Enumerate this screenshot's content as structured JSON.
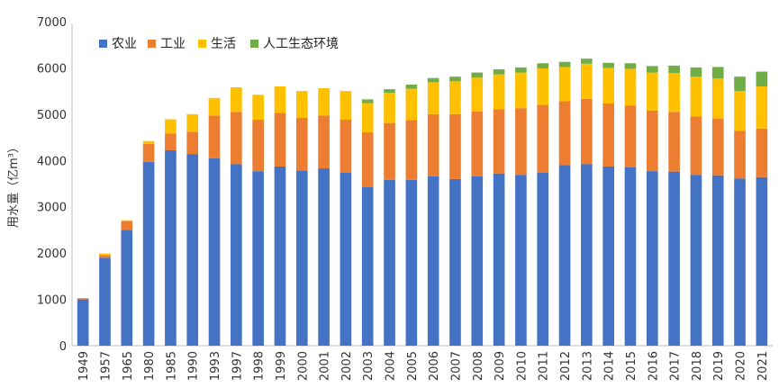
{
  "chart_data": {
    "type": "bar",
    "stacked": true,
    "ylabel": "用水量（亿m³）",
    "ylim": [
      0,
      7000
    ],
    "yticks": [
      0,
      1000,
      2000,
      3000,
      4000,
      5000,
      6000,
      7000
    ],
    "grid": false,
    "legend_position": "top-left",
    "categories": [
      "1949",
      "1957",
      "1965",
      "1980",
      "1985",
      "1990",
      "1993",
      "1997",
      "1998",
      "1999",
      "2000",
      "2001",
      "2002",
      "2003",
      "2004",
      "2005",
      "2006",
      "2007",
      "2008",
      "2009",
      "2010",
      "2011",
      "2012",
      "2013",
      "2014",
      "2015",
      "2016",
      "2017",
      "2018",
      "2019",
      "2020",
      "2021"
    ],
    "series": [
      {
        "name": "农业",
        "color": "#4472C4",
        "values": [
          1000,
          1900,
          2500,
          3970,
          4220,
          4140,
          4050,
          3920,
          3770,
          3870,
          3780,
          3830,
          3740,
          3430,
          3580,
          3580,
          3660,
          3600,
          3660,
          3720,
          3690,
          3740,
          3900,
          3920,
          3870,
          3850,
          3770,
          3760,
          3690,
          3680,
          3610,
          3640
        ]
      },
      {
        "name": "工业",
        "color": "#ED7D31",
        "values": [
          20,
          60,
          190,
          390,
          360,
          480,
          920,
          1130,
          1110,
          1160,
          1140,
          1140,
          1140,
          1180,
          1230,
          1290,
          1340,
          1400,
          1400,
          1390,
          1440,
          1460,
          1380,
          1410,
          1360,
          1340,
          1310,
          1290,
          1260,
          1220,
          1030,
          1050
        ]
      },
      {
        "name": "生活",
        "color": "#FFC000",
        "values": [
          10,
          30,
          20,
          60,
          310,
          380,
          380,
          530,
          540,
          570,
          580,
          590,
          620,
          630,
          650,
          680,
          690,
          710,
          730,
          750,
          770,
          790,
          740,
          760,
          770,
          790,
          820,
          840,
          860,
          870,
          860,
          910
        ]
      },
      {
        "name": "人工生态环境",
        "color": "#70AD47",
        "values": [
          0,
          0,
          0,
          0,
          0,
          0,
          0,
          0,
          0,
          0,
          0,
          0,
          0,
          80,
          80,
          90,
          90,
          100,
          110,
          110,
          110,
          110,
          110,
          110,
          110,
          120,
          140,
          160,
          200,
          250,
          310,
          320
        ]
      }
    ]
  }
}
